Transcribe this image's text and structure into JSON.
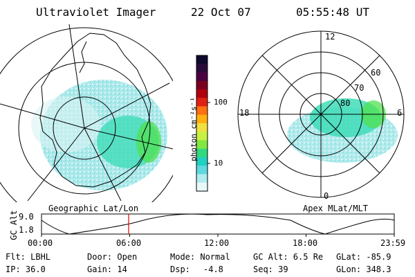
{
  "header": {
    "instrument": "Ultraviolet Imager",
    "date": "22 Oct 07",
    "time": "05:55:48 UT"
  },
  "geo_panel": {
    "label": "Geographic Lat/Lon"
  },
  "apex_panel": {
    "label": "Apex MLat/MLT",
    "mlt_labels": [
      "12",
      "6",
      "0",
      "18"
    ],
    "mlat_labels": [
      "60",
      "70",
      "80"
    ]
  },
  "colorbar": {
    "unit": "photon cm⁻²s⁻¹",
    "ticks": [
      "100",
      "10"
    ],
    "colors": [
      "#0e0a2e",
      "#2a0a3a",
      "#4a0040",
      "#7a0020",
      "#b00010",
      "#e02010",
      "#ff7010",
      "#ffb010",
      "#f0e040",
      "#c8f040",
      "#80e840",
      "#30d880",
      "#20d0c0",
      "#60d8e0",
      "#b0ecf0",
      "#e8f8f8"
    ]
  },
  "altitude_strip": {
    "axis_label": "GC Alt",
    "yticks": [
      "9.0",
      "1.8"
    ],
    "xticks": [
      "00:00",
      "06:00",
      "12:00",
      "18:00",
      "23:59"
    ],
    "current_time_hours": 5.93
  },
  "info": {
    "filter": "Flt: LBHL",
    "ip": "IP: 36.0",
    "door": "Door: Open",
    "gain": "Gain: 14",
    "mode": "Mode: Normal",
    "dsp_label": "Dsp:",
    "dsp_value": "-4.8",
    "gc_alt": "GC Alt: 6.5 Re",
    "seq": "Seq: 39",
    "glat": "GLat: -85.9",
    "glon": "GLon: 348.3"
  }
}
